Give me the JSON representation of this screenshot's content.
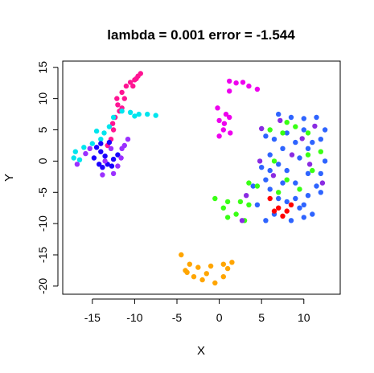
{
  "chart_data": {
    "type": "scatter",
    "title": "lambda = 0.001 error = -1.544",
    "xlabel": "X",
    "ylabel": "Y",
    "xlim": [
      -18.5,
      14.3
    ],
    "ylim": [
      -21.3,
      16
    ],
    "xticks": [
      -15,
      -10,
      -5,
      0,
      5,
      10
    ],
    "yticks": [
      -20,
      -15,
      -10,
      -5,
      0,
      5,
      10,
      15
    ],
    "grid": false,
    "legend": "none",
    "point_style": "filled circle",
    "clusters": [
      {
        "color": "#ff1493",
        "points": [
          [
            -11.5,
            11
          ],
          [
            -11,
            12
          ],
          [
            -10.5,
            12.6
          ],
          [
            -10,
            13
          ],
          [
            -9.6,
            13.6
          ],
          [
            -9.3,
            14
          ],
          [
            -12,
            9
          ],
          [
            -12.3,
            7
          ],
          [
            -11.8,
            8
          ],
          [
            -12.5,
            5
          ],
          [
            -12.8,
            3.5
          ],
          [
            -13.2,
            2.5
          ],
          [
            -11.2,
            10
          ],
          [
            -10.2,
            12
          ],
          [
            -12.1,
            10
          ],
          [
            -9.8,
            13.2
          ],
          [
            -12.6,
            6
          ],
          [
            -11.5,
            8.5
          ]
        ]
      },
      {
        "color": "#00e5ee",
        "points": [
          [
            -12.5,
            7
          ],
          [
            -11.5,
            8
          ],
          [
            -10.5,
            7.8
          ],
          [
            -9.5,
            7.5
          ],
          [
            -8.5,
            7.5
          ],
          [
            -7.5,
            7.3
          ],
          [
            -13,
            5.5
          ],
          [
            -13.6,
            4.5
          ],
          [
            -14,
            3.5
          ],
          [
            -15,
            2.8
          ],
          [
            -16,
            2.2
          ],
          [
            -17,
            1.5
          ],
          [
            -17.2,
            0.5
          ],
          [
            -16.5,
            0.2
          ],
          [
            -14.5,
            4.8
          ],
          [
            -10,
            7.2
          ]
        ]
      },
      {
        "color": "#1a00ff",
        "points": [
          [
            -14.5,
            2.2
          ],
          [
            -14,
            1.5
          ],
          [
            -13.5,
            0.8
          ],
          [
            -14.2,
            -0.5
          ],
          [
            -13.8,
            -1
          ],
          [
            -13.2,
            -0.5
          ],
          [
            -12.5,
            0.3
          ],
          [
            -12,
            1
          ],
          [
            -13,
            3
          ],
          [
            -14.8,
            0.5
          ],
          [
            -14,
            2.8
          ],
          [
            -12.7,
            -0.8
          ]
        ]
      },
      {
        "color": "#ee00ee",
        "points": [
          [
            1.2,
            12.8
          ],
          [
            2,
            12.5
          ],
          [
            2.8,
            12.6
          ],
          [
            3.5,
            12
          ],
          [
            4.5,
            11.5
          ],
          [
            1.2,
            11.2
          ],
          [
            0.8,
            7.5
          ],
          [
            1.2,
            7
          ],
          [
            0,
            6.5
          ],
          [
            0.5,
            5
          ],
          [
            1.3,
            4.5
          ],
          [
            0,
            4
          ],
          [
            0.6,
            6
          ],
          [
            -0.2,
            8.5
          ]
        ]
      },
      {
        "color": "#2e64ff",
        "points": [
          [
            7,
            7.5
          ],
          [
            8.5,
            7
          ],
          [
            10,
            6.8
          ],
          [
            11.5,
            7
          ],
          [
            12.5,
            5
          ],
          [
            12,
            3.5
          ],
          [
            10.5,
            2
          ],
          [
            9,
            3
          ],
          [
            7.5,
            2
          ],
          [
            7,
            -0.5
          ],
          [
            6,
            -1.5
          ],
          [
            5.5,
            -3
          ],
          [
            6,
            -4.5
          ],
          [
            7,
            -6
          ],
          [
            8,
            -6.5
          ],
          [
            9,
            -6
          ],
          [
            10.5,
            -5.5
          ],
          [
            11.5,
            -4
          ],
          [
            12,
            -2
          ],
          [
            12.5,
            0
          ],
          [
            12,
            -5
          ],
          [
            9.5,
            -7.5
          ],
          [
            8.5,
            -9.5
          ],
          [
            10,
            -9
          ],
          [
            6.5,
            -8.5
          ],
          [
            5.5,
            -9.5
          ],
          [
            4.5,
            -7
          ],
          [
            4,
            -4
          ],
          [
            5,
            -1
          ],
          [
            6,
            1
          ],
          [
            8,
            4.5
          ],
          [
            10,
            5
          ],
          [
            11,
            3
          ],
          [
            9.5,
            0.5
          ],
          [
            8,
            -1.5
          ],
          [
            10.5,
            -2
          ],
          [
            7.5,
            -3.5
          ],
          [
            9,
            -3.5
          ],
          [
            10,
            -7
          ],
          [
            5.5,
            4
          ],
          [
            6.5,
            3.5
          ],
          [
            11,
            -8.5
          ]
        ]
      },
      {
        "color": "#39ff14",
        "points": [
          [
            -0.5,
            -6
          ],
          [
            1,
            -6.5
          ],
          [
            2.5,
            -6.5
          ],
          [
            3.5,
            -7
          ],
          [
            2,
            -8.5
          ],
          [
            1,
            -9
          ],
          [
            3,
            -9.5
          ],
          [
            0.5,
            -7.5
          ],
          [
            6,
            5
          ],
          [
            7.5,
            4.5
          ],
          [
            9,
            5.5
          ],
          [
            10.5,
            4.5
          ],
          [
            8,
            6.2
          ],
          [
            6.5,
            0
          ],
          [
            11,
            -1.5
          ],
          [
            9.5,
            -4.5
          ],
          [
            8,
            -3
          ],
          [
            10.5,
            1
          ],
          [
            4.5,
            -4
          ],
          [
            3.5,
            -3.5
          ],
          [
            7,
            -5
          ],
          [
            12,
            1.5
          ]
        ]
      },
      {
        "color": "#ff0000",
        "points": [
          [
            6,
            -6
          ],
          [
            7,
            -7.5
          ],
          [
            8,
            -8
          ],
          [
            7.5,
            -8.8
          ],
          [
            8.5,
            -7
          ],
          [
            6.5,
            -8
          ]
        ]
      },
      {
        "color": "#9b30ff",
        "points": [
          [
            -12,
            -0.8
          ],
          [
            -13.5,
            0
          ],
          [
            -16.8,
            -0.5
          ],
          [
            -15.8,
            1.2
          ],
          [
            -13.8,
            -2.2
          ],
          [
            -11.5,
            2
          ],
          [
            -11.2,
            2.5
          ],
          [
            -15.3,
            2
          ],
          [
            -12.8,
            2
          ],
          [
            -11.6,
            0.5
          ],
          [
            -12.5,
            -2
          ],
          [
            -10.8,
            3.5
          ]
        ]
      },
      {
        "color": "#8a2be2",
        "points": [
          [
            5,
            5.2
          ],
          [
            7.2,
            6.5
          ],
          [
            12.2,
            -3.5
          ],
          [
            6.4,
            -2.3
          ],
          [
            11.3,
            5.6
          ],
          [
            4.8,
            0
          ],
          [
            8.6,
            1
          ],
          [
            3.2,
            -5.5
          ],
          [
            2.7,
            -9.5
          ],
          [
            10.7,
            -0.5
          ],
          [
            9.8,
            3.6
          ]
        ]
      },
      {
        "color": "#ffa500",
        "points": [
          [
            -3.5,
            -16.5
          ],
          [
            -2.5,
            -17
          ],
          [
            -1,
            -16.8
          ],
          [
            0.5,
            -16.5
          ],
          [
            1.5,
            -16.2
          ],
          [
            -3,
            -18.5
          ],
          [
            -2,
            -19
          ],
          [
            -0.5,
            -19.5
          ],
          [
            0.5,
            -18.5
          ],
          [
            -4,
            -17.5
          ],
          [
            -4.5,
            -15
          ],
          [
            -3.8,
            -17.8
          ],
          [
            -1.5,
            -18
          ],
          [
            1,
            -17.2
          ]
        ]
      }
    ]
  }
}
